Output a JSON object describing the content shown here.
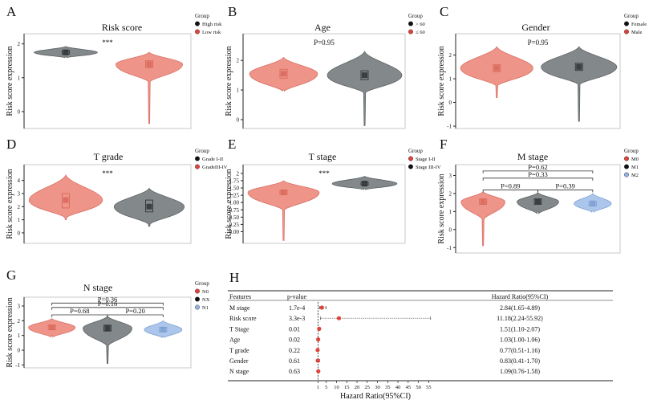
{
  "colors": {
    "salmon": "#ee8f83",
    "salmon_line": "#d9695c",
    "gray": "#7d8385",
    "gray_line": "#555b5d",
    "blue": "#a8c4ea",
    "blue_line": "#7b9fd0",
    "dot_red": "#e0433a",
    "dot_black": "#111111",
    "dot_blue": "#8fb2e3"
  },
  "chart_data": [
    {
      "panel": "A",
      "type": "violin",
      "title": "Risk score",
      "ylabel": "Risk score expression",
      "ylim": [
        -0.5,
        2.3
      ],
      "yticks": [
        "0",
        "1",
        "2"
      ],
      "tickvals": [
        0,
        1,
        2
      ],
      "legend": {
        "title": "Group",
        "entries": [
          "High risk",
          "Low risk"
        ]
      },
      "annotations": [
        "***"
      ],
      "comparisons": [],
      "groups": [
        {
          "name": "High risk",
          "color": "gray",
          "center": 1.75,
          "min": 1.62,
          "max": 1.92,
          "width": 0.38,
          "box": [
            1.7,
            1.8
          ]
        },
        {
          "name": "Low risk",
          "color": "salmon",
          "center": 1.4,
          "min": -0.35,
          "max": 1.75,
          "width": 0.4,
          "box": [
            1.3,
            1.5
          ]
        }
      ]
    },
    {
      "panel": "B",
      "type": "violin",
      "title": "Age",
      "ylabel": "Risk score expression",
      "ylim": [
        -0.3,
        2.9
      ],
      "yticks": [
        "0",
        "1",
        "2"
      ],
      "tickvals": [
        0,
        1,
        2
      ],
      "legend": {
        "title": "Group",
        "entries": [
          "> 60",
          "≤ 60"
        ]
      },
      "annotations": [
        "P=0.95"
      ],
      "comparisons": [],
      "groups": [
        {
          "name": "≤ 60",
          "color": "salmon",
          "center": 1.55,
          "min": 1.0,
          "max": 2.1,
          "width": 0.42,
          "box": [
            1.4,
            1.7
          ]
        },
        {
          "name": "> 60",
          "color": "gray",
          "center": 1.5,
          "min": -0.2,
          "max": 2.3,
          "width": 0.46,
          "box": [
            1.35,
            1.65
          ]
        }
      ]
    },
    {
      "panel": "C",
      "type": "violin",
      "title": "Gender",
      "ylabel": "Risk score expression",
      "ylim": [
        -1.1,
        2.9
      ],
      "yticks": [
        "-1",
        "0",
        "1",
        "2"
      ],
      "tickvals": [
        -1,
        0,
        1,
        2
      ],
      "legend": {
        "title": "Group",
        "entries": [
          "Female",
          "Male"
        ]
      },
      "annotations": [
        "P=0.95"
      ],
      "comparisons": [],
      "groups": [
        {
          "name": "Male",
          "color": "salmon",
          "center": 1.45,
          "min": 0.2,
          "max": 2.35,
          "width": 0.44,
          "box": [
            1.3,
            1.6
          ]
        },
        {
          "name": "Female",
          "color": "gray",
          "center": 1.5,
          "min": -0.8,
          "max": 2.35,
          "width": 0.46,
          "box": [
            1.35,
            1.65
          ]
        }
      ]
    },
    {
      "panel": "D",
      "type": "violin",
      "title": "T grade",
      "ylabel": "Risk score expression",
      "ylim": [
        -0.8,
        5.2
      ],
      "yticks": [
        "0",
        "1",
        "2",
        "3",
        "4"
      ],
      "tickvals": [
        0,
        1,
        2,
        3,
        4
      ],
      "legend": {
        "title": "Group",
        "entries": [
          "Grade I-II",
          "GradeIII-IV"
        ]
      },
      "annotations": [
        "***"
      ],
      "comparisons": [],
      "groups": [
        {
          "name": "GradeIII-IV",
          "color": "salmon",
          "center": 2.5,
          "min": 1.0,
          "max": 4.4,
          "width": 0.44,
          "box": [
            1.9,
            3.0
          ]
        },
        {
          "name": "Grade I-II",
          "color": "gray",
          "center": 2.0,
          "min": 0.5,
          "max": 3.4,
          "width": 0.42,
          "box": [
            1.6,
            2.5
          ]
        }
      ]
    },
    {
      "panel": "E",
      "type": "violin",
      "title": "T stage",
      "ylabel": "Risk score expression",
      "ylim": [
        -0.4,
        2.3
      ],
      "yticks": [
        "0.00",
        "0.25",
        "0.50",
        "0.75",
        "1.00",
        "1.25",
        "1.50",
        "1.75",
        "2"
      ],
      "tickvals": [
        0,
        0.25,
        0.5,
        0.75,
        1,
        1.25,
        1.5,
        1.75,
        2
      ],
      "legend": {
        "title": "Group",
        "entries": [
          "Stage I-II",
          "Stage III-IV"
        ]
      },
      "annotations": [
        "***"
      ],
      "comparisons": [],
      "groups": [
        {
          "name": "Stage I-II",
          "color": "salmon",
          "center": 1.35,
          "min": -0.3,
          "max": 1.75,
          "width": 0.44,
          "box": [
            1.28,
            1.42
          ]
        },
        {
          "name": "Stage III-IV",
          "color": "gray",
          "center": 1.65,
          "min": 1.48,
          "max": 1.9,
          "width": 0.4,
          "box": [
            1.6,
            1.7
          ]
        }
      ]
    },
    {
      "panel": "F",
      "type": "violin",
      "title": "M stage",
      "ylabel": "Risk score expression",
      "ylim": [
        -1.3,
        3.6
      ],
      "yticks": [
        "-1",
        "0",
        "1",
        "2",
        "3"
      ],
      "tickvals": [
        -1,
        0,
        1,
        2,
        3
      ],
      "legend": {
        "title": "Group",
        "entries": [
          "M0",
          "M1",
          "M2"
        ]
      },
      "annotations": [],
      "comparisons": [
        {
          "label": "P=0.89",
          "from": 0,
          "to": 1,
          "y": 2.2
        },
        {
          "label": "P=0.39",
          "from": 1,
          "to": 2,
          "y": 2.2
        },
        {
          "label": "P=0.33",
          "from": 0,
          "to": 2,
          "y": 2.85
        },
        {
          "label": "P=0.62",
          "from": 0,
          "to": 2,
          "y": 3.25
        }
      ],
      "groups": [
        {
          "name": "M0",
          "color": "salmon",
          "center": 1.55,
          "min": -0.9,
          "max": 2.1,
          "width": 0.4,
          "box": [
            1.4,
            1.7
          ]
        },
        {
          "name": "M1",
          "color": "gray",
          "center": 1.55,
          "min": 1.0,
          "max": 2.05,
          "width": 0.38,
          "box": [
            1.4,
            1.7
          ]
        },
        {
          "name": "M2",
          "color": "blue",
          "center": 1.45,
          "min": 1.05,
          "max": 2.0,
          "width": 0.34,
          "box": [
            1.3,
            1.55
          ]
        }
      ]
    },
    {
      "panel": "G",
      "type": "violin",
      "title": "N stage",
      "ylabel": "Risk score expression",
      "ylim": [
        -1.2,
        3.6
      ],
      "yticks": [
        "-1",
        "0",
        "1",
        "2",
        "3"
      ],
      "tickvals": [
        -1,
        0,
        1,
        2,
        3
      ],
      "legend": {
        "title": "Group",
        "entries": [
          "N0",
          "NX",
          "N1"
        ]
      },
      "annotations": [],
      "comparisons": [
        {
          "label": "P=0.68",
          "from": 0,
          "to": 1,
          "y": 2.4
        },
        {
          "label": "P=0.20",
          "from": 1,
          "to": 2,
          "y": 2.4
        },
        {
          "label": "P=0.16",
          "from": 0,
          "to": 2,
          "y": 2.9
        },
        {
          "label": "P=0.36",
          "from": 0,
          "to": 2,
          "y": 3.2
        }
      ],
      "groups": [
        {
          "name": "N0",
          "color": "salmon",
          "center": 1.55,
          "min": 1.0,
          "max": 2.15,
          "width": 0.42,
          "box": [
            1.4,
            1.7
          ]
        },
        {
          "name": "NX",
          "color": "gray",
          "center": 1.5,
          "min": -0.9,
          "max": 2.3,
          "width": 0.44,
          "box": [
            1.3,
            1.7
          ]
        },
        {
          "name": "N1",
          "color": "blue",
          "center": 1.4,
          "min": 0.95,
          "max": 2.0,
          "width": 0.34,
          "box": [
            1.25,
            1.55
          ]
        }
      ]
    },
    {
      "panel": "H",
      "type": "forest",
      "columns": [
        "Features",
        "p-value",
        "Hazard Ratio(95%CI)"
      ],
      "xlabel": "Hazard Ratio(95%CI)",
      "xticks": [
        1,
        5,
        10,
        15,
        20,
        25,
        30,
        35,
        40,
        45,
        50,
        55
      ],
      "xlim": [
        0,
        58
      ],
      "rows": [
        {
          "feature": "M stage",
          "p": "1.7e-4",
          "hr": 2.84,
          "lo": 1.65,
          "hi": 4.89,
          "text": "2.84(1.65-4.89)"
        },
        {
          "feature": "Risk score",
          "p": "3.3e-3",
          "hr": 11.18,
          "lo": 2.24,
          "hi": 55.92,
          "text": "11.18(2.24-55.92)"
        },
        {
          "feature": "T Stage",
          "p": "0.01",
          "hr": 1.51,
          "lo": 1.1,
          "hi": 2.07,
          "text": "1.51(1.10-2.07)"
        },
        {
          "feature": "Age",
          "p": "0.02",
          "hr": 1.03,
          "lo": 1.0,
          "hi": 1.06,
          "text": "1.03(1.00-1.06)"
        },
        {
          "feature": "T grade",
          "p": "0.22",
          "hr": 0.77,
          "lo": 0.51,
          "hi": 1.16,
          "text": "0.77(0.51-1.16)"
        },
        {
          "feature": "Gender",
          "p": "0.61",
          "hr": 0.83,
          "lo": 0.41,
          "hi": 1.7,
          "text": "0.83(0.41-1.70)"
        },
        {
          "feature": "N stage",
          "p": "0.63",
          "hr": 1.09,
          "lo": 0.76,
          "hi": 1.58,
          "text": "1.09(0.76-1.58)"
        }
      ]
    }
  ]
}
